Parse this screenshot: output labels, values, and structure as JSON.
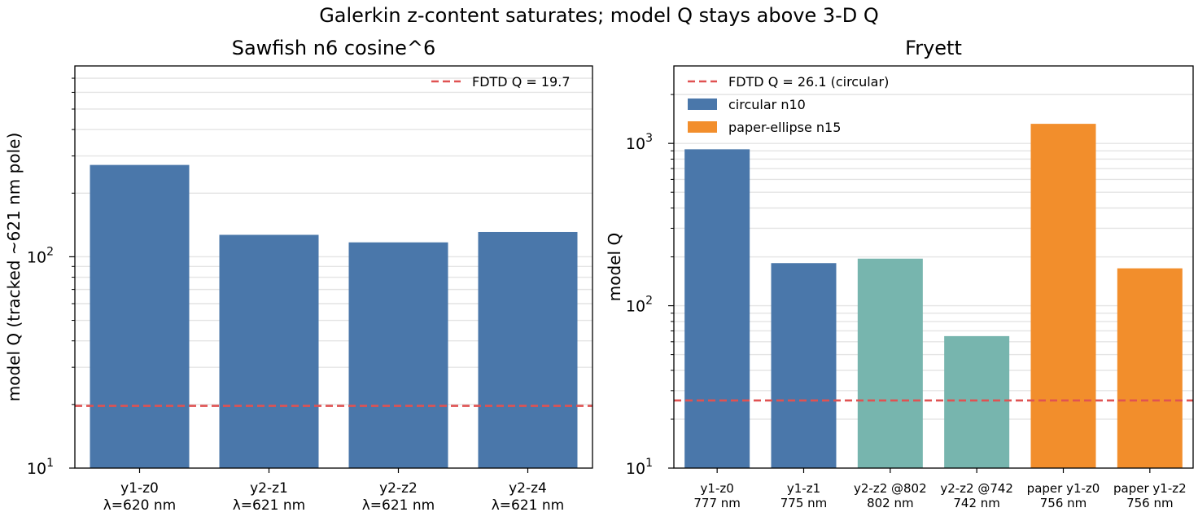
{
  "suptitle": "Galerkin z-content saturates; model Q stays above 3-D Q",
  "chart_data": [
    {
      "type": "bar",
      "title": "Sawfish n6 cosine^6",
      "ylabel": "model Q (tracked ~621 nm pole)",
      "yscale": "log",
      "ylim": [
        10,
        800
      ],
      "ytick_labels": [
        {
          "value": 10,
          "base": "10",
          "exp": "1"
        },
        {
          "value": 100,
          "base": "10",
          "exp": "2"
        }
      ],
      "grid": true,
      "legend_loc": "upper right",
      "categories": [
        [
          "y1-z0",
          "λ=620 nm"
        ],
        [
          "y2-z1",
          "λ=621 nm"
        ],
        [
          "y2-z2",
          "λ=621 nm"
        ],
        [
          "y2-z4",
          "λ=621 nm"
        ]
      ],
      "values": [
        272,
        127,
        117,
        131
      ],
      "bar_colors": [
        "#4a77aa",
        "#4a77aa",
        "#4a77aa",
        "#4a77aa"
      ],
      "reference_line": {
        "value": 19.7,
        "label": "FDTD Q = 19.7",
        "color": "#e05252",
        "style": "dashed"
      }
    },
    {
      "type": "bar",
      "title": "Fryett",
      "ylabel": "model Q",
      "yscale": "log",
      "ylim": [
        10,
        3000
      ],
      "ytick_labels": [
        {
          "value": 10,
          "base": "10",
          "exp": "1"
        },
        {
          "value": 100,
          "base": "10",
          "exp": "2"
        },
        {
          "value": 1000,
          "base": "10",
          "exp": "3"
        }
      ],
      "grid": true,
      "legend_loc": "upper left",
      "categories": [
        [
          "y1-z0",
          "777 nm"
        ],
        [
          "y1-z1",
          "775 nm"
        ],
        [
          "y2-z2 @802",
          "802 nm"
        ],
        [
          "y2-z2 @742",
          "742 nm"
        ],
        [
          "paper y1-z0",
          "756 nm"
        ],
        [
          "paper y1-z2",
          "756 nm"
        ]
      ],
      "values": [
        920,
        183,
        195,
        65,
        1320,
        170
      ],
      "bar_colors": [
        "#4a77aa",
        "#4a77aa",
        "#77b5ae",
        "#77b5ae",
        "#f28e2c",
        "#f28e2c"
      ],
      "reference_line": {
        "value": 26.1,
        "label": "FDTD Q = 26.1 (circular)",
        "color": "#e05252",
        "style": "dashed"
      },
      "legend": [
        {
          "label": "circular n10",
          "color": "#4a77aa"
        },
        {
          "label": "paper-ellipse n15",
          "color": "#f28e2c"
        }
      ]
    }
  ]
}
